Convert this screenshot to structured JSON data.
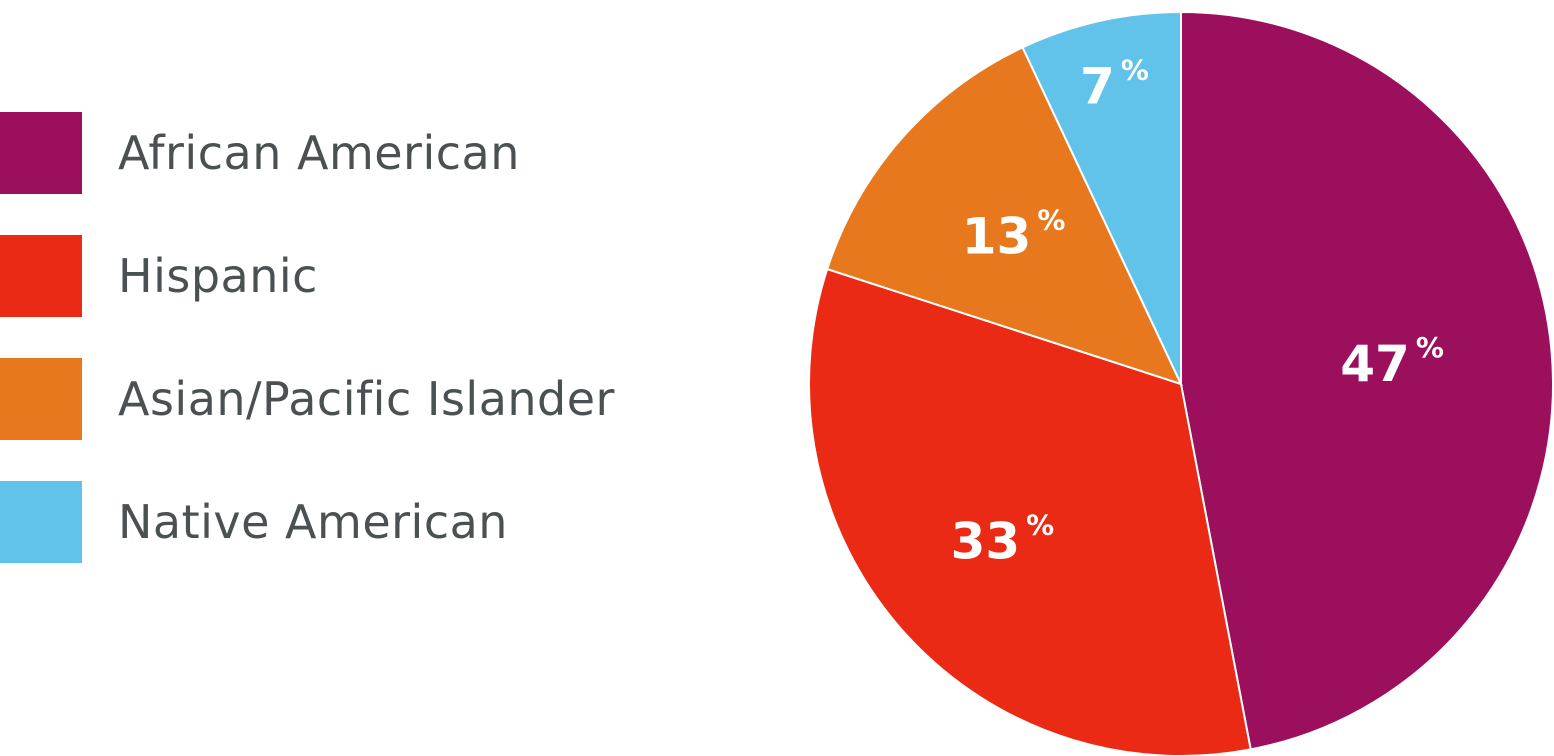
{
  "chart_data": {
    "type": "pie",
    "title": "",
    "unit": "%",
    "slices": [
      {
        "name": "African American",
        "value": 47,
        "color": "#9b0f5c"
      },
      {
        "name": "Hispanic",
        "value": 33,
        "color": "#eb2a16"
      },
      {
        "name": "Asian/Pacific Islander",
        "value": 13,
        "color": "#e8781d"
      },
      {
        "name": "Native American",
        "value": 7,
        "color": "#61c2ea"
      }
    ],
    "legend_placement": "left"
  }
}
